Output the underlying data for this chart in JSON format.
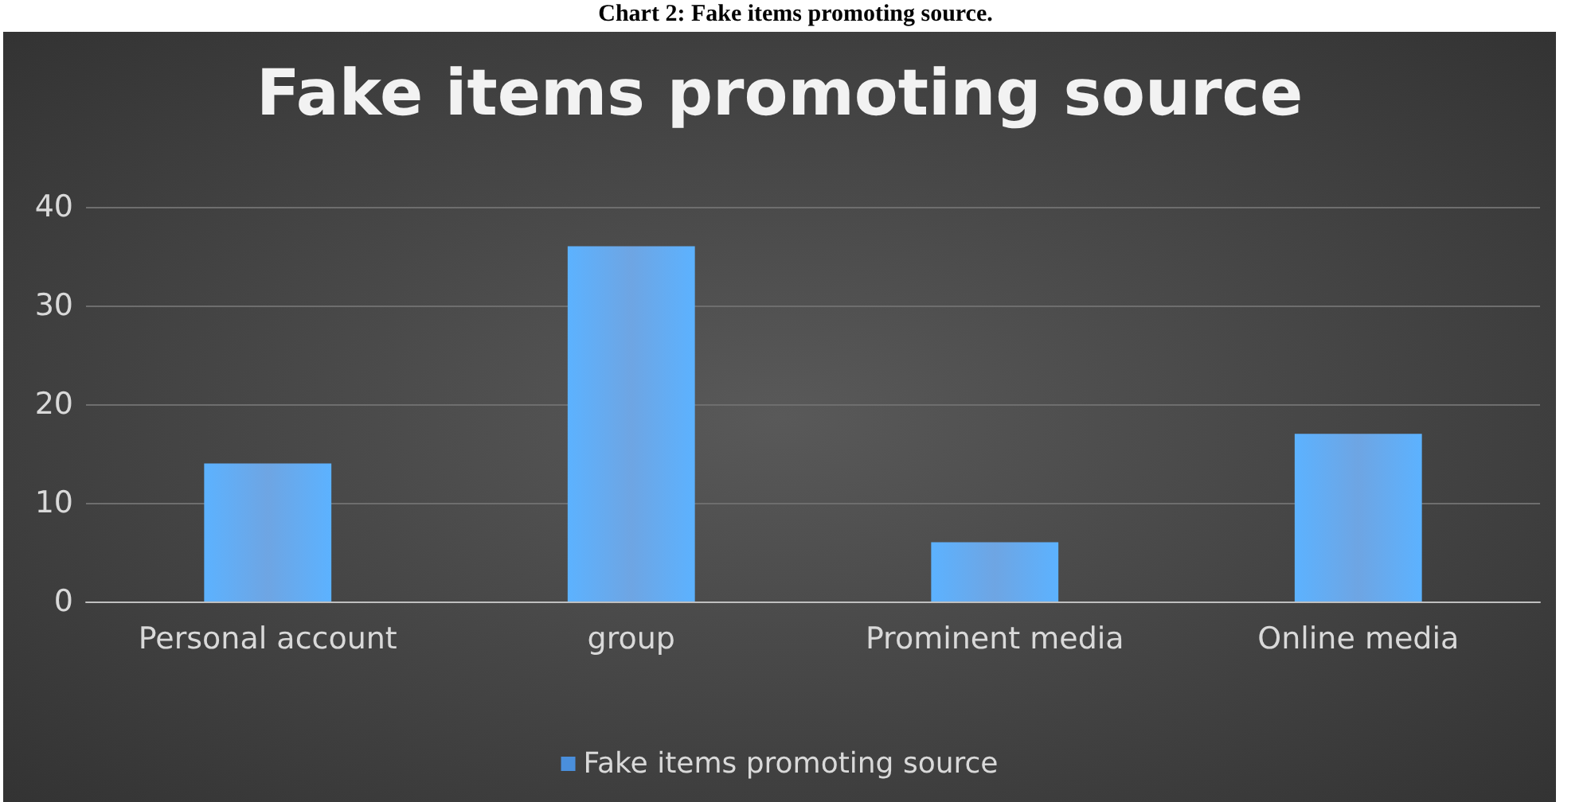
{
  "chart_data": {
    "type": "bar",
    "title": "Fake items promoting source",
    "annotations": [
      "Chart 2: Fake items promoting source."
    ],
    "categories": [
      "Personal account",
      "group",
      "Prominent media",
      "Online media"
    ],
    "series": [
      {
        "name": "Fake items promoting source",
        "color": "#4a8fdc",
        "values": [
          14,
          36,
          6,
          17
        ]
      }
    ],
    "ylim": [
      0,
      40
    ],
    "yticks": [
      0,
      10,
      20,
      30,
      40
    ],
    "grid": "y",
    "legend": "bottom"
  }
}
